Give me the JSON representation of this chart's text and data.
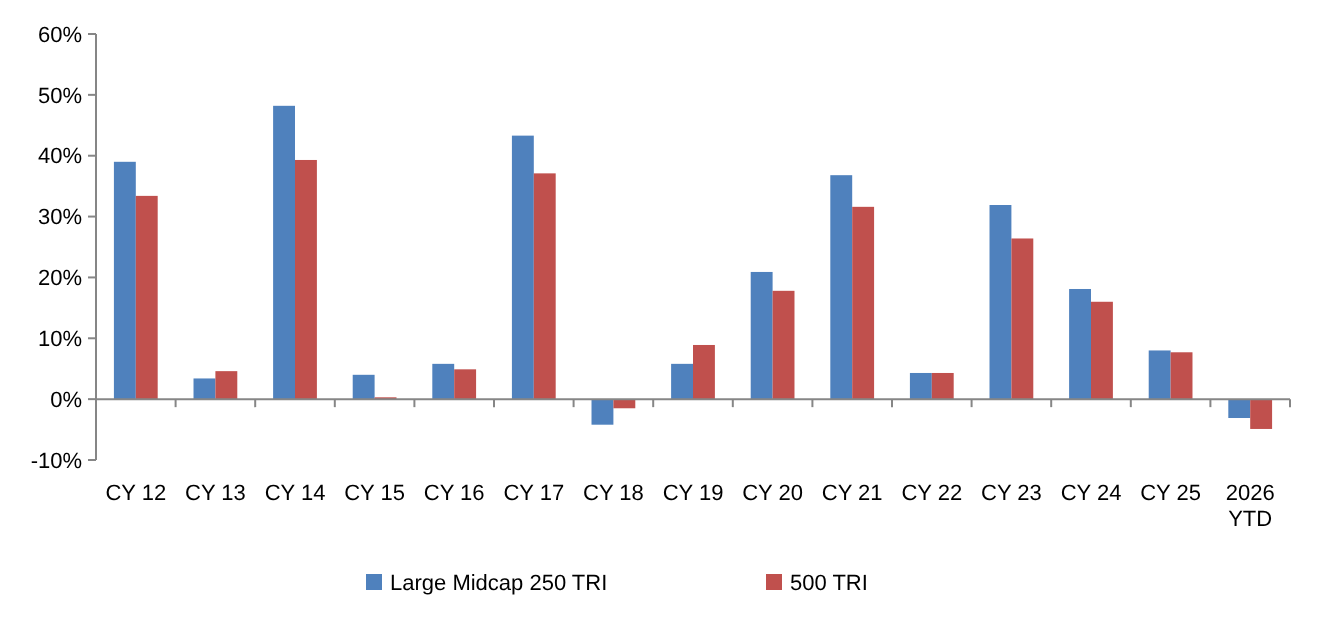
{
  "chart_data": {
    "type": "bar",
    "categories": [
      "CY 12",
      "CY 13",
      "CY 14",
      "CY 15",
      "CY 16",
      "CY 17",
      "CY 18",
      "CY 19",
      "CY 20",
      "CY 21",
      "CY 22",
      "CY 23",
      "CY 24",
      "CY 25",
      "2026 YTD"
    ],
    "series": [
      {
        "name": "Large Midcap 250 TRI",
        "color": "#4f81bd",
        "values": [
          39.0,
          3.4,
          48.2,
          4.0,
          5.8,
          43.3,
          -4.2,
          5.8,
          20.9,
          36.8,
          4.3,
          31.9,
          18.1,
          8.0,
          -3.1
        ]
      },
      {
        "name": "500 TRI",
        "color": "#c0504d",
        "values": [
          33.4,
          4.6,
          39.3,
          0.3,
          4.9,
          37.1,
          -1.5,
          8.9,
          17.8,
          31.6,
          4.3,
          26.4,
          16.0,
          7.7,
          -4.9
        ]
      }
    ],
    "ylim": [
      -10,
      60
    ],
    "yticks": [
      {
        "value": -10,
        "label": "-10%"
      },
      {
        "value": 0,
        "label": "0%"
      },
      {
        "value": 10,
        "label": "10%"
      },
      {
        "value": 20,
        "label": "20%"
      },
      {
        "value": 30,
        "label": "30%"
      },
      {
        "value": 40,
        "label": "40%"
      },
      {
        "value": 50,
        "label": "50%"
      },
      {
        "value": 60,
        "label": "60%"
      }
    ],
    "legend": "bottom"
  }
}
